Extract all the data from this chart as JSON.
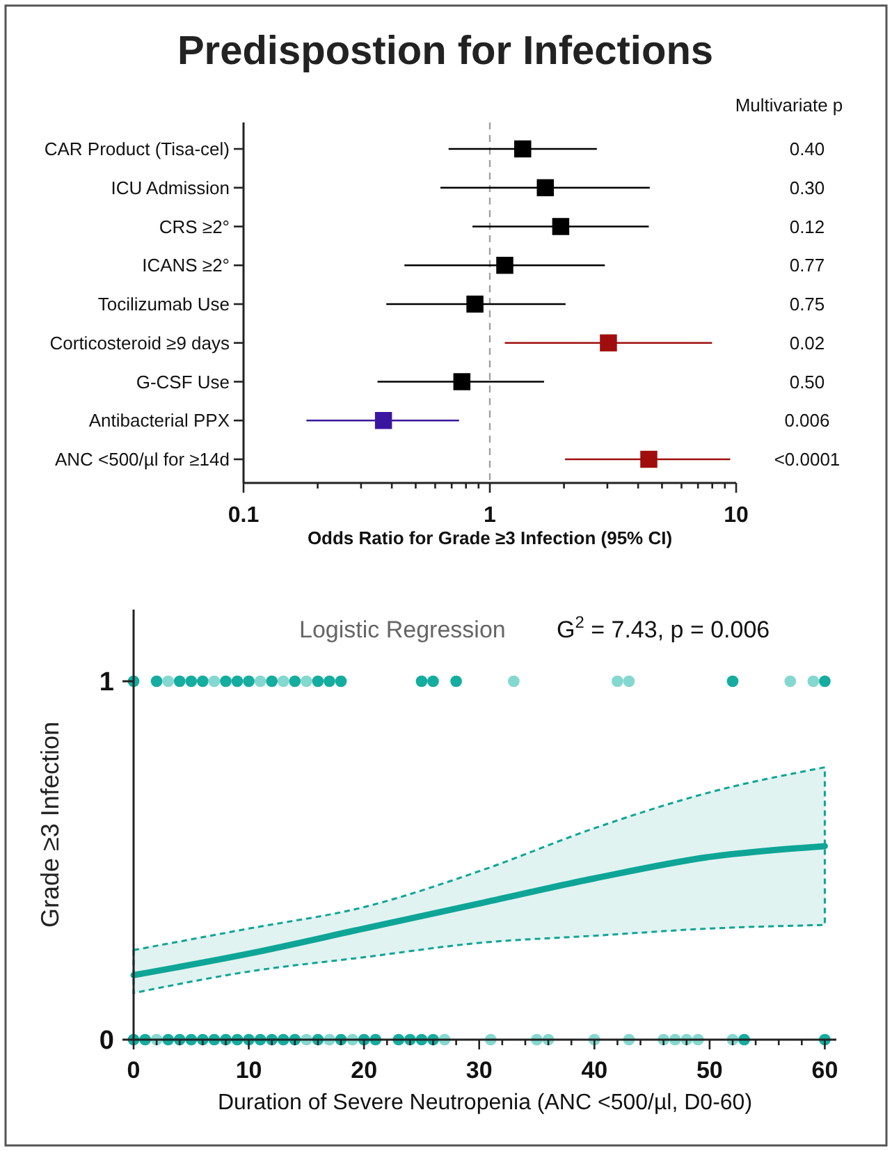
{
  "chart_data": [
    {
      "type": "scatter",
      "title": "Predispostion for Infections",
      "orientation": "horizontal",
      "log": "x",
      "marker": "square",
      "categories": [
        "CAR Product (Tisa-cel)",
        "ICU Admission",
        "CRS ≥2°",
        "ICANS ≥2°",
        "Tocilizumab Use",
        "Corticosteroid ≥9 days",
        "G-CSF Use",
        "Antibacterial PPX",
        "ANC <500/µl for ≥14d"
      ],
      "values": [
        1.36,
        1.68,
        1.94,
        1.15,
        0.87,
        3.03,
        0.77,
        0.37,
        4.42
      ],
      "errors": [
        [
          0.68,
          2.72
        ],
        [
          0.63,
          4.46
        ],
        [
          0.85,
          4.42
        ],
        [
          0.45,
          2.93
        ],
        [
          0.38,
          2.03
        ],
        [
          1.15,
          7.98
        ],
        [
          0.35,
          1.66
        ],
        [
          0.18,
          0.75
        ],
        [
          2.02,
          9.46
        ]
      ],
      "colors": [
        "#000000",
        "#000000",
        "#000000",
        "#000000",
        "#000000",
        "#a00d0d",
        "#000000",
        "#3a16a0",
        "#a00d0d"
      ],
      "xlim": [
        0.1,
        10
      ],
      "xticks": [
        0.1,
        {
          "value": 0.2,
          "label": null
        },
        {
          "value": 0.3,
          "label": null
        },
        {
          "value": 0.4,
          "label": null
        },
        {
          "value": 0.5,
          "label": null
        },
        {
          "value": 0.6,
          "label": null
        },
        {
          "value": 0.7,
          "label": null
        },
        {
          "value": 0.8,
          "label": null
        },
        {
          "value": 0.9,
          "label": null
        },
        1,
        {
          "value": 2,
          "label": null
        },
        {
          "value": 3,
          "label": null
        },
        {
          "value": 4,
          "label": null
        },
        {
          "value": 5,
          "label": null
        },
        {
          "value": 6,
          "label": null
        },
        {
          "value": 7,
          "label": null
        },
        {
          "value": 8,
          "label": null
        },
        {
          "value": 9,
          "label": null
        },
        10
      ],
      "xlabel": "Odds Ratio for Grade ≥3 Infection (95% CI)",
      "ref_lines": [
        {
          "axis": "x",
          "value": 1,
          "label": null,
          "color": "#a0a0a0",
          "line_style": "dashed"
        }
      ],
      "annotations": [
        "Multivariate p",
        "0.40",
        "0.30",
        "0.12",
        "0.77",
        "0.75",
        "0.02",
        "0.50",
        "0.006",
        "<0.0001"
      ]
    },
    {
      "type": "scatter",
      "xlabel": "Duration of Severe Neutropenia (ANC <500/µl, D0-60)",
      "ylabel": "Grade ≥3 Infection",
      "xlim": [
        0,
        61
      ],
      "ylim": [
        0,
        1.2
      ],
      "xticks": [
        0,
        {
          "value": 2,
          "label": null
        },
        {
          "value": 4,
          "label": null
        },
        {
          "value": 6,
          "label": null
        },
        {
          "value": 8,
          "label": null
        },
        10,
        {
          "value": 12,
          "label": null
        },
        {
          "value": 14,
          "label": null
        },
        {
          "value": 16,
          "label": null
        },
        {
          "value": 18,
          "label": null
        },
        20,
        {
          "value": 22,
          "label": null
        },
        {
          "value": 24,
          "label": null
        },
        {
          "value": 26,
          "label": null
        },
        {
          "value": 28,
          "label": null
        },
        30,
        {
          "value": 32,
          "label": null
        },
        {
          "value": 34,
          "label": null
        },
        {
          "value": 36,
          "label": null
        },
        {
          "value": 38,
          "label": null
        },
        40,
        {
          "value": 42,
          "label": null
        },
        {
          "value": 44,
          "label": null
        },
        {
          "value": 46,
          "label": null
        },
        {
          "value": 48,
          "label": null
        },
        50,
        {
          "value": 52,
          "label": null
        },
        {
          "value": 54,
          "label": null
        },
        {
          "value": 56,
          "label": null
        },
        {
          "value": 58,
          "label": null
        },
        60
      ],
      "yticks": [
        0,
        1
      ],
      "annotations": [
        "Logistic Regression",
        "G$^{2}$ = 7.43, p = 0.006"
      ],
      "series": [
        {
          "type": "line",
          "color": "#0ea596",
          "line_style": "solid",
          "x": [
            0,
            10,
            20,
            30,
            40,
            50,
            60
          ],
          "values": [
            0.18,
            0.24,
            0.31,
            0.38,
            0.45,
            0.51,
            0.54
          ],
          "lower": [
            0.13,
            0.19,
            0.23,
            0.27,
            0.29,
            0.31,
            0.32
          ],
          "upper": [
            0.25,
            0.31,
            0.37,
            0.47,
            0.59,
            0.69,
            0.76
          ]
        },
        {
          "type": "scatter",
          "marker": "circle",
          "x": [
            0,
            2,
            3,
            4,
            5,
            6,
            7,
            8,
            9,
            10,
            11,
            12,
            13,
            14,
            15,
            16,
            17,
            18,
            25,
            26,
            28,
            33,
            42,
            43,
            52,
            57,
            59,
            60
          ],
          "values": [
            1,
            1,
            1,
            1,
            1,
            1,
            1,
            1,
            1,
            1,
            1,
            1,
            1,
            1,
            1,
            1,
            1,
            1,
            1,
            1,
            1,
            1,
            1,
            1,
            1,
            1,
            1,
            1
          ],
          "colors": [
            "#14ada0",
            "#14ada0",
            "#84d8cf",
            "#14ada0",
            "#14ada0",
            "#14ada0",
            "#84d8cf",
            "#14ada0",
            "#14ada0",
            "#14ada0",
            "#84d8cf",
            "#14ada0",
            "#84d8cf",
            "#14ada0",
            "#84d8cf",
            "#14ada0",
            "#14ada0",
            "#14ada0",
            "#14ada0",
            "#14ada0",
            "#14ada0",
            "#84d8cf",
            "#84d8cf",
            "#84d8cf",
            "#14ada0",
            "#84d8cf",
            "#84d8cf",
            "#14ada0"
          ]
        },
        {
          "type": "scatter",
          "marker": "circle",
          "x": [
            0,
            1,
            2,
            3,
            4,
            5,
            6,
            7,
            8,
            9,
            10,
            11,
            12,
            13,
            14,
            15,
            16,
            17,
            18,
            19,
            20,
            21,
            23,
            24,
            25,
            26,
            27,
            31,
            35,
            36,
            40,
            43,
            46,
            47,
            48,
            49,
            52,
            53,
            60
          ],
          "values": [
            0,
            0,
            0,
            0,
            0,
            0,
            0,
            0,
            0,
            0,
            0,
            0,
            0,
            0,
            0,
            0,
            0,
            0,
            0,
            0,
            0,
            0,
            0,
            0,
            0,
            0,
            0,
            0,
            0,
            0,
            0,
            0,
            0,
            0,
            0,
            0,
            0,
            0,
            0
          ],
          "colors": [
            "#14ada0",
            "#14ada0",
            "#84d8cf",
            "#14ada0",
            "#14ada0",
            "#14ada0",
            "#14ada0",
            "#14ada0",
            "#14ada0",
            "#14ada0",
            "#14ada0",
            "#14ada0",
            "#14ada0",
            "#14ada0",
            "#14ada0",
            "#84d8cf",
            "#14ada0",
            "#84d8cf",
            "#14ada0",
            "#84d8cf",
            "#14ada0",
            "#14ada0",
            "#14ada0",
            "#14ada0",
            "#14ada0",
            "#14ada0",
            "#84d8cf",
            "#84d8cf",
            "#84d8cf",
            "#84d8cf",
            "#84d8cf",
            "#84d8cf",
            "#84d8cf",
            "#84d8cf",
            "#84d8cf",
            "#84d8cf",
            "#84d8cf",
            "#14ada0",
            "#14ada0"
          ]
        }
      ]
    }
  ]
}
